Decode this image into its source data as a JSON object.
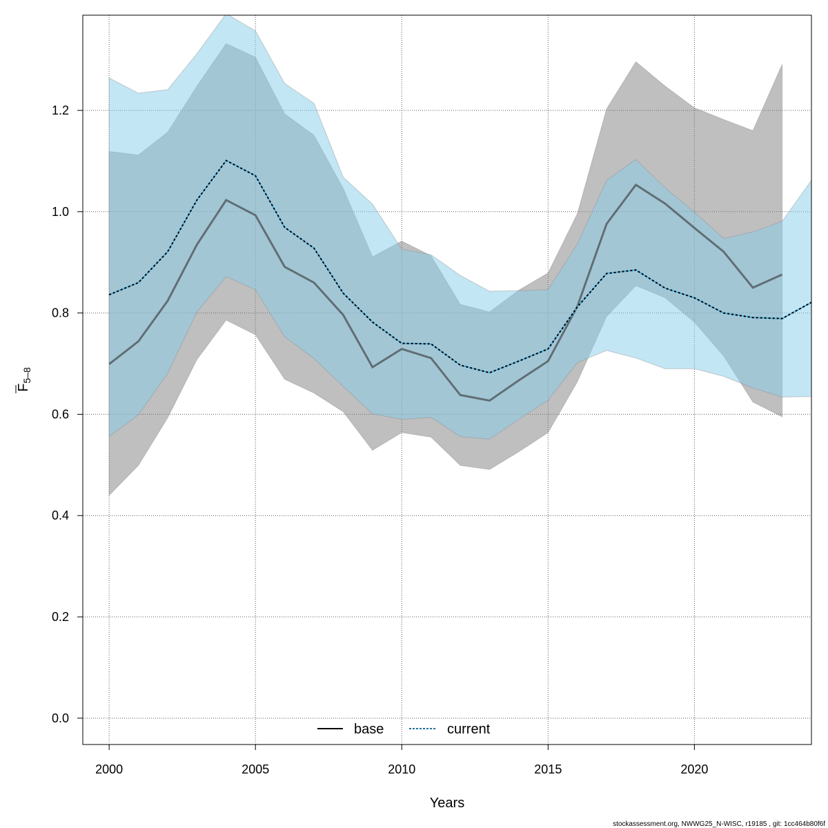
{
  "chart_data": {
    "type": "line",
    "title": "",
    "xlabel": "Years",
    "ylabel": "F5-8",
    "ylabel_main": "F",
    "ylabel_sub": "5–8",
    "xlim": [
      1999.1,
      2024
    ],
    "ylim": [
      -0.052,
      1.388
    ],
    "xticks": [
      2000,
      2005,
      2010,
      2015,
      2020
    ],
    "yticks": [
      0.0,
      0.2,
      0.4,
      0.6,
      0.8,
      1.0,
      1.2
    ],
    "ytick_labels": [
      "0.0",
      "0.2",
      "0.4",
      "0.6",
      "0.8",
      "1.0",
      "1.2"
    ],
    "grid": true,
    "legend_position": "bottom",
    "series": [
      {
        "name": "base",
        "line_style": "solid",
        "band_color": "#808080",
        "line_color": "#333333",
        "x": [
          2000,
          2001,
          2002,
          2003,
          2004,
          2005,
          2006,
          2007,
          2008,
          2009,
          2010,
          2011,
          2012,
          2013,
          2014,
          2015,
          2016,
          2017,
          2018,
          2019,
          2020,
          2021,
          2022,
          2023
        ],
        "values": [
          0.699,
          0.744,
          0.824,
          0.935,
          1.023,
          0.993,
          0.891,
          0.86,
          0.796,
          0.693,
          0.729,
          0.711,
          0.638,
          0.627,
          0.667,
          0.705,
          0.813,
          0.976,
          1.053,
          1.016,
          0.968,
          0.921,
          0.85,
          0.876
        ],
        "upper": [
          1.119,
          1.112,
          1.157,
          1.248,
          1.332,
          1.305,
          1.193,
          1.151,
          1.046,
          0.911,
          0.942,
          0.913,
          0.817,
          0.802,
          0.845,
          0.879,
          0.996,
          1.203,
          1.296,
          1.248,
          1.205,
          1.182,
          1.16,
          1.291
        ],
        "lower": [
          0.44,
          0.499,
          0.593,
          0.708,
          0.786,
          0.757,
          0.669,
          0.642,
          0.605,
          0.529,
          0.564,
          0.555,
          0.499,
          0.491,
          0.526,
          0.564,
          0.664,
          0.793,
          0.854,
          0.83,
          0.782,
          0.715,
          0.624,
          0.595
        ]
      },
      {
        "name": "current",
        "line_style": "dotted",
        "band_color": "#87CEEB",
        "line_color": "#000000",
        "x": [
          2000,
          2001,
          2002,
          2003,
          2004,
          2005,
          2006,
          2007,
          2008,
          2009,
          2010,
          2011,
          2012,
          2013,
          2014,
          2015,
          2016,
          2017,
          2018,
          2019,
          2020,
          2021,
          2022,
          2023,
          2024
        ],
        "values": [
          0.836,
          0.86,
          0.921,
          1.023,
          1.101,
          1.071,
          0.969,
          0.928,
          0.839,
          0.782,
          0.74,
          0.739,
          0.697,
          0.682,
          0.705,
          0.729,
          0.812,
          0.878,
          0.885,
          0.849,
          0.83,
          0.8,
          0.791,
          0.789,
          0.821
        ],
        "upper": [
          1.264,
          1.234,
          1.241,
          1.312,
          1.391,
          1.357,
          1.253,
          1.214,
          1.068,
          1.015,
          0.926,
          0.915,
          0.874,
          0.843,
          0.844,
          0.846,
          0.936,
          1.062,
          1.103,
          1.047,
          0.999,
          0.947,
          0.96,
          0.981,
          1.062
        ],
        "lower": [
          0.556,
          0.599,
          0.681,
          0.802,
          0.872,
          0.846,
          0.753,
          0.71,
          0.655,
          0.601,
          0.59,
          0.594,
          0.556,
          0.551,
          0.59,
          0.628,
          0.702,
          0.726,
          0.711,
          0.69,
          0.69,
          0.675,
          0.652,
          0.634,
          0.635
        ]
      }
    ]
  },
  "footer": "stockassessment.org, NWWG25_N-WISC, r19185 , git: 1cc464b80f6f"
}
